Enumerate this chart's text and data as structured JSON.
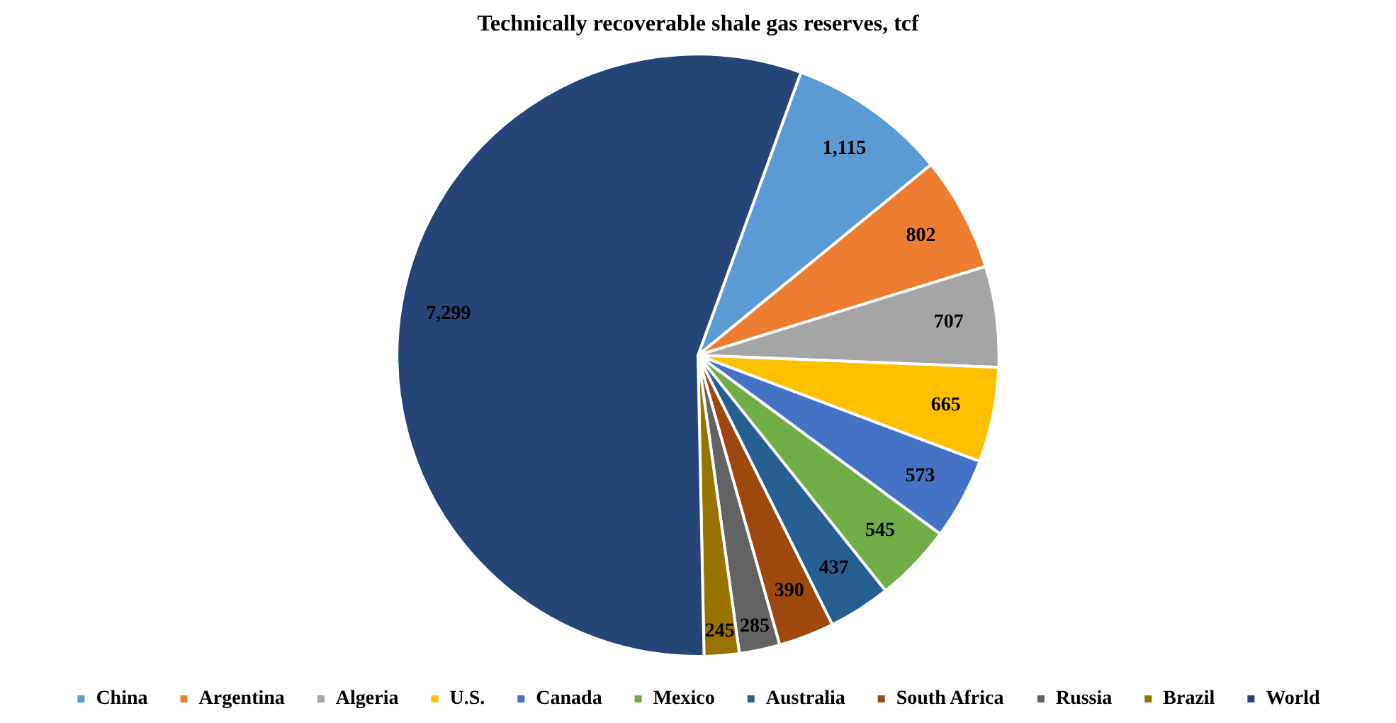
{
  "chart_data": {
    "type": "pie",
    "title": "Technically recoverable shale gas reserves, tcf",
    "categories": [
      "China",
      "Argentina",
      "Algeria",
      "U.S.",
      "Canada",
      "Mexico",
      "Australia",
      "South Africa",
      "Russia",
      "Brazil",
      "World"
    ],
    "values": [
      1115,
      802,
      707,
      665,
      573,
      545,
      437,
      390,
      285,
      245,
      7299
    ],
    "colors": [
      "#5b9bd5",
      "#ed7d31",
      "#a5a5a5",
      "#ffc000",
      "#4472c4",
      "#70ad47",
      "#255e91",
      "#9e480e",
      "#636363",
      "#997300",
      "#264478"
    ],
    "value_labels": [
      "1,115",
      "802",
      "707",
      "665",
      "573",
      "545",
      "437",
      "390",
      "285",
      "245",
      "7,299"
    ],
    "legend": "bottom"
  }
}
